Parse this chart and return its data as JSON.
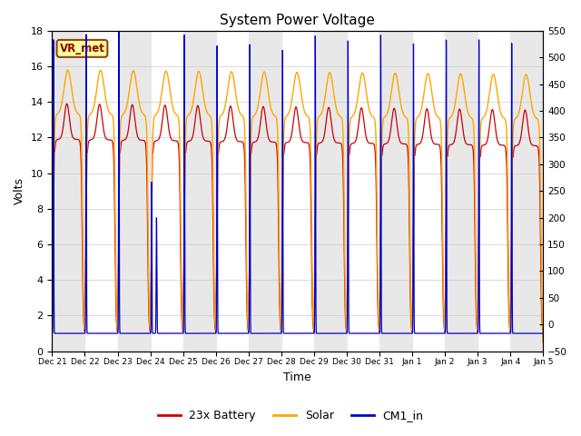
{
  "title": "System Power Voltage",
  "xlabel": "Time",
  "ylabel_left": "Volts",
  "ylim_left": [
    0,
    18
  ],
  "ylim_right": [
    -50,
    550
  ],
  "yticks_left": [
    0,
    2,
    4,
    6,
    8,
    10,
    12,
    14,
    16,
    18
  ],
  "yticks_right": [
    -50,
    0,
    50,
    100,
    150,
    200,
    250,
    300,
    350,
    400,
    450,
    500,
    550
  ],
  "x_labels": [
    "Dec 21",
    "Dec 22",
    "Dec 23",
    "Dec 24",
    "Dec 25",
    "Dec 26",
    "Dec 27",
    "Dec 28",
    "Dec 29",
    "Dec 30",
    "Dec 31",
    "Jan 1",
    "Jan 2",
    "Jan 3",
    "Jan 4",
    "Jan 5"
  ],
  "num_days": 15,
  "battery_color": "#cc0000",
  "solar_color": "#ffa500",
  "cm1_color": "#0000cc",
  "bg_color": "#ffffff",
  "strip_color": "#e8e8e8",
  "annotation_text": "VR_met",
  "annotation_bg": "#ffff99",
  "annotation_border": "#8B4513",
  "legend_items": [
    "23x Battery",
    "Solar",
    "CM1_in"
  ]
}
